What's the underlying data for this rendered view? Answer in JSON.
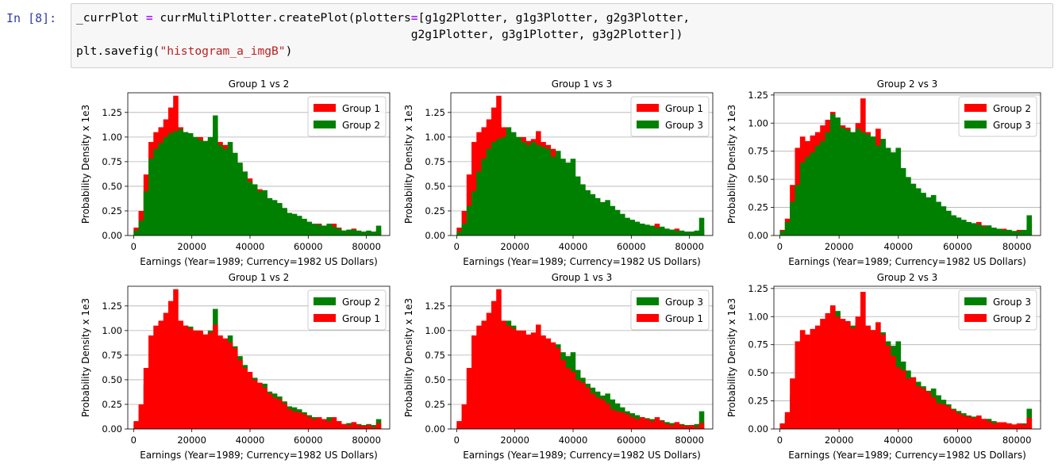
{
  "cell": {
    "prompt": "In [8]:",
    "line1": {
      "a": "_currPlot ",
      "eq": "=",
      "b": " currMultiPlotter.createPlot(plotters",
      "eq2": "=",
      "c": "[g1g2Plotter, g1g3Plotter, g2g3Plotter,"
    },
    "line2": "                                                g2g1Plotter, g3g1Plotter, g3g2Plotter])",
    "line3": {
      "a": "plt.savefig(",
      "str": "\"histogram_a_imgB\"",
      "b": ")"
    }
  },
  "colors": {
    "groupA": "#ff0000",
    "groupB": "#008000",
    "grid": "#b0b0b0"
  },
  "chart_data": [
    {
      "type": "bar",
      "title": "Group 1 vs 2",
      "xlabel": "Earnings (Year=1989; Currency=1982 US Dollars)",
      "ylabel": "Probability Density x 1e3",
      "xlim": [
        -2000,
        88000
      ],
      "ylim": [
        0,
        1.45
      ],
      "yticks": [
        "0.00",
        "0.25",
        "0.50",
        "0.75",
        "1.00",
        "1.25"
      ],
      "xticks": [
        "0",
        "20000",
        "40000",
        "60000",
        "80000"
      ],
      "grid": "horizontal",
      "legend": "upper right",
      "draw_order": [
        "Group 1",
        "Group 2"
      ],
      "legend_entries": [
        {
          "label": "Group 1",
          "color": "red"
        },
        {
          "label": "Group 2",
          "color": "green"
        }
      ],
      "bins": {
        "start": 0,
        "width": 1700,
        "count": 50
      },
      "series": [
        {
          "name": "Group 1",
          "values": [
            0.08,
            0.25,
            0.62,
            0.95,
            1.05,
            1.1,
            1.18,
            1.3,
            1.42,
            1.1,
            1.05,
            1.02,
            1.0,
            1.0,
            0.96,
            0.98,
            1.06,
            0.95,
            0.92,
            0.88,
            0.82,
            0.7,
            0.62,
            0.58,
            0.5,
            0.47,
            0.42,
            0.36,
            0.32,
            0.3,
            0.26,
            0.2,
            0.18,
            0.17,
            0.15,
            0.12,
            0.1,
            0.12,
            0.1,
            0.08,
            0.12,
            0.08,
            0.05,
            0.04,
            0.07,
            0.04,
            0.03,
            0.04,
            0.02,
            0.06
          ]
        },
        {
          "name": "Group 2",
          "values": [
            0.05,
            0.15,
            0.45,
            0.78,
            0.88,
            0.94,
            1.0,
            1.04,
            1.06,
            1.08,
            1.05,
            1.04,
            1.0,
            0.97,
            0.96,
            1.0,
            1.22,
            0.92,
            0.88,
            0.95,
            0.84,
            0.74,
            0.65,
            0.55,
            0.52,
            0.45,
            0.46,
            0.38,
            0.36,
            0.33,
            0.28,
            0.23,
            0.22,
            0.2,
            0.17,
            0.14,
            0.12,
            0.11,
            0.1,
            0.12,
            0.09,
            0.07,
            0.05,
            0.06,
            0.06,
            0.05,
            0.04,
            0.05,
            0.04,
            0.1
          ]
        }
      ]
    },
    {
      "type": "bar",
      "title": "Group 1 vs 3",
      "xlabel": "Earnings (Year=1989; Currency=1982 US Dollars)",
      "ylabel": "Probability Density x 1e3",
      "xlim": [
        -2000,
        88000
      ],
      "ylim": [
        0,
        1.45
      ],
      "yticks": [
        "0.00",
        "0.25",
        "0.50",
        "0.75",
        "1.00",
        "1.25"
      ],
      "xticks": [
        "0",
        "20000",
        "40000",
        "60000",
        "80000"
      ],
      "grid": "horizontal",
      "legend": "upper right",
      "draw_order": [
        "Group 1",
        "Group 3"
      ],
      "legend_entries": [
        {
          "label": "Group 1",
          "color": "red"
        },
        {
          "label": "Group 3",
          "color": "green"
        }
      ],
      "bins": {
        "start": 0,
        "width": 1700,
        "count": 50
      },
      "series": [
        {
          "name": "Group 1",
          "values": [
            0.08,
            0.25,
            0.62,
            0.95,
            1.05,
            1.1,
            1.18,
            1.3,
            1.42,
            1.1,
            1.05,
            1.02,
            1.0,
            1.0,
            0.96,
            0.98,
            1.06,
            0.95,
            0.92,
            0.88,
            0.82,
            0.7,
            0.62,
            0.58,
            0.5,
            0.47,
            0.42,
            0.36,
            0.32,
            0.3,
            0.26,
            0.2,
            0.18,
            0.17,
            0.15,
            0.12,
            0.1,
            0.12,
            0.1,
            0.08,
            0.12,
            0.08,
            0.05,
            0.04,
            0.07,
            0.04,
            0.03,
            0.04,
            0.02,
            0.06
          ]
        },
        {
          "name": "Group 3",
          "values": [
            0.04,
            0.12,
            0.3,
            0.45,
            0.65,
            0.78,
            0.88,
            0.95,
            0.98,
            1.0,
            1.1,
            1.05,
            1.0,
            0.95,
            0.92,
            0.95,
            0.92,
            0.9,
            0.88,
            0.8,
            0.86,
            0.78,
            0.74,
            0.78,
            0.6,
            0.52,
            0.46,
            0.42,
            0.38,
            0.34,
            0.36,
            0.3,
            0.26,
            0.22,
            0.18,
            0.16,
            0.14,
            0.12,
            0.11,
            0.1,
            0.08,
            0.09,
            0.07,
            0.06,
            0.05,
            0.05,
            0.04,
            0.04,
            0.05,
            0.18
          ]
        }
      ]
    },
    {
      "type": "bar",
      "title": "Group 2 vs 3",
      "xlabel": "Earnings (Year=1989; Currency=1982 US Dollars)",
      "ylabel": "Probability Density x 1e3",
      "xlim": [
        -2000,
        88000
      ],
      "ylim": [
        0,
        1.27
      ],
      "yticks": [
        "0.00",
        "0.25",
        "0.50",
        "0.75",
        "1.00",
        "1.25"
      ],
      "xticks": [
        "0",
        "20000",
        "40000",
        "60000",
        "80000"
      ],
      "grid": "horizontal",
      "legend": "upper right",
      "draw_order": [
        "Group 2",
        "Group 3"
      ],
      "legend_entries": [
        {
          "label": "Group 2",
          "color": "red"
        },
        {
          "label": "Group 3",
          "color": "green"
        }
      ],
      "bins": {
        "start": 0,
        "width": 1700,
        "count": 50
      },
      "series": [
        {
          "name": "Group 2",
          "values": [
            0.05,
            0.15,
            0.45,
            0.78,
            0.88,
            0.84,
            0.89,
            0.92,
            0.98,
            1.03,
            1.1,
            1.0,
            0.98,
            0.96,
            0.9,
            1.0,
            1.22,
            0.92,
            0.88,
            0.95,
            0.84,
            0.74,
            0.65,
            0.55,
            0.52,
            0.45,
            0.46,
            0.38,
            0.36,
            0.33,
            0.28,
            0.23,
            0.22,
            0.2,
            0.17,
            0.14,
            0.12,
            0.11,
            0.1,
            0.12,
            0.09,
            0.07,
            0.05,
            0.06,
            0.06,
            0.05,
            0.04,
            0.05,
            0.04,
            0.1
          ]
        },
        {
          "name": "Group 3",
          "values": [
            0.04,
            0.12,
            0.3,
            0.45,
            0.65,
            0.7,
            0.74,
            0.8,
            0.84,
            0.92,
            1.08,
            1.05,
            0.96,
            0.94,
            0.92,
            0.95,
            0.92,
            0.9,
            0.88,
            0.8,
            0.86,
            0.78,
            0.74,
            0.78,
            0.6,
            0.52,
            0.46,
            0.42,
            0.38,
            0.34,
            0.36,
            0.3,
            0.26,
            0.22,
            0.18,
            0.16,
            0.14,
            0.12,
            0.11,
            0.1,
            0.08,
            0.09,
            0.07,
            0.06,
            0.05,
            0.05,
            0.04,
            0.04,
            0.05,
            0.18
          ]
        }
      ]
    },
    {
      "type": "bar",
      "title": "Group 1 vs 2",
      "xlabel": "Earnings (Year=1989; Currency=1982 US Dollars)",
      "ylabel": "Probability Density x 1e3",
      "xlim": [
        -2000,
        88000
      ],
      "ylim": [
        0,
        1.45
      ],
      "yticks": [
        "0.00",
        "0.25",
        "0.50",
        "0.75",
        "1.00",
        "1.25"
      ],
      "xticks": [
        "0",
        "20000",
        "40000",
        "60000",
        "80000"
      ],
      "grid": "horizontal",
      "legend": "upper right",
      "draw_order": [
        "Group 2",
        "Group 1"
      ],
      "legend_entries": [
        {
          "label": "Group 2",
          "color": "green"
        },
        {
          "label": "Group 1",
          "color": "red"
        }
      ],
      "bins": {
        "start": 0,
        "width": 1700,
        "count": 50
      },
      "series": [
        {
          "name": "Group 1",
          "values": [
            0.08,
            0.25,
            0.62,
            0.95,
            1.05,
            1.1,
            1.18,
            1.3,
            1.42,
            1.1,
            1.05,
            1.02,
            1.0,
            1.0,
            0.96,
            0.98,
            1.06,
            0.95,
            0.92,
            0.88,
            0.82,
            0.7,
            0.62,
            0.58,
            0.5,
            0.47,
            0.42,
            0.36,
            0.32,
            0.3,
            0.26,
            0.2,
            0.18,
            0.17,
            0.15,
            0.12,
            0.1,
            0.12,
            0.1,
            0.08,
            0.12,
            0.08,
            0.05,
            0.04,
            0.07,
            0.04,
            0.03,
            0.04,
            0.02,
            0.06
          ]
        },
        {
          "name": "Group 2",
          "values": [
            0.05,
            0.15,
            0.45,
            0.78,
            0.88,
            0.94,
            1.0,
            1.04,
            1.06,
            1.08,
            1.05,
            1.04,
            1.0,
            0.97,
            0.96,
            1.0,
            1.22,
            0.92,
            0.88,
            0.95,
            0.84,
            0.74,
            0.65,
            0.55,
            0.52,
            0.45,
            0.46,
            0.38,
            0.36,
            0.33,
            0.28,
            0.23,
            0.22,
            0.2,
            0.17,
            0.14,
            0.12,
            0.11,
            0.1,
            0.12,
            0.09,
            0.07,
            0.05,
            0.06,
            0.06,
            0.05,
            0.04,
            0.05,
            0.04,
            0.1
          ]
        }
      ]
    },
    {
      "type": "bar",
      "title": "Group 1 vs 3",
      "xlabel": "Earnings (Year=1989; Currency=1982 US Dollars)",
      "ylabel": "Probability Density x 1e3",
      "xlim": [
        -2000,
        88000
      ],
      "ylim": [
        0,
        1.45
      ],
      "yticks": [
        "0.00",
        "0.25",
        "0.50",
        "0.75",
        "1.00",
        "1.25"
      ],
      "xticks": [
        "0",
        "20000",
        "40000",
        "60000",
        "80000"
      ],
      "grid": "horizontal",
      "legend": "upper right",
      "draw_order": [
        "Group 3",
        "Group 1"
      ],
      "legend_entries": [
        {
          "label": "Group 3",
          "color": "green"
        },
        {
          "label": "Group 1",
          "color": "red"
        }
      ],
      "bins": {
        "start": 0,
        "width": 1700,
        "count": 50
      },
      "series": [
        {
          "name": "Group 1",
          "values": [
            0.08,
            0.25,
            0.62,
            0.95,
            1.05,
            1.1,
            1.18,
            1.3,
            1.42,
            1.1,
            1.05,
            1.02,
            1.0,
            1.0,
            0.96,
            0.98,
            1.06,
            0.95,
            0.92,
            0.88,
            0.82,
            0.7,
            0.62,
            0.58,
            0.5,
            0.47,
            0.42,
            0.36,
            0.32,
            0.3,
            0.26,
            0.2,
            0.18,
            0.17,
            0.15,
            0.12,
            0.1,
            0.12,
            0.1,
            0.08,
            0.12,
            0.08,
            0.05,
            0.04,
            0.07,
            0.04,
            0.03,
            0.04,
            0.02,
            0.06
          ]
        },
        {
          "name": "Group 3",
          "values": [
            0.04,
            0.12,
            0.3,
            0.45,
            0.65,
            0.78,
            0.88,
            0.95,
            0.98,
            1.0,
            1.1,
            1.05,
            1.0,
            0.95,
            0.92,
            0.95,
            0.92,
            0.9,
            0.88,
            0.8,
            0.86,
            0.78,
            0.74,
            0.78,
            0.6,
            0.52,
            0.46,
            0.42,
            0.38,
            0.34,
            0.36,
            0.3,
            0.26,
            0.22,
            0.18,
            0.16,
            0.14,
            0.12,
            0.11,
            0.1,
            0.08,
            0.09,
            0.07,
            0.06,
            0.05,
            0.05,
            0.04,
            0.04,
            0.05,
            0.18
          ]
        }
      ]
    },
    {
      "type": "bar",
      "title": "Group 2 vs 3",
      "xlabel": "Earnings (Year=1989; Currency=1982 US Dollars)",
      "ylabel": "Probability Density x 1e3",
      "xlim": [
        -2000,
        88000
      ],
      "ylim": [
        0,
        1.27
      ],
      "yticks": [
        "0.00",
        "0.25",
        "0.50",
        "0.75",
        "1.00",
        "1.25"
      ],
      "xticks": [
        "0",
        "20000",
        "40000",
        "60000",
        "80000"
      ],
      "grid": "horizontal",
      "legend": "upper right",
      "draw_order": [
        "Group 3",
        "Group 2"
      ],
      "legend_entries": [
        {
          "label": "Group 3",
          "color": "green"
        },
        {
          "label": "Group 2",
          "color": "red"
        }
      ],
      "bins": {
        "start": 0,
        "width": 1700,
        "count": 50
      },
      "series": [
        {
          "name": "Group 2",
          "values": [
            0.05,
            0.15,
            0.45,
            0.78,
            0.88,
            0.84,
            0.89,
            0.92,
            0.98,
            1.03,
            1.1,
            1.0,
            0.98,
            0.96,
            0.9,
            1.0,
            1.22,
            0.92,
            0.88,
            0.95,
            0.84,
            0.74,
            0.65,
            0.55,
            0.52,
            0.45,
            0.46,
            0.38,
            0.36,
            0.33,
            0.28,
            0.23,
            0.22,
            0.2,
            0.17,
            0.14,
            0.12,
            0.11,
            0.1,
            0.12,
            0.09,
            0.07,
            0.05,
            0.06,
            0.06,
            0.05,
            0.04,
            0.05,
            0.04,
            0.1
          ]
        },
        {
          "name": "Group 3",
          "values": [
            0.04,
            0.12,
            0.3,
            0.45,
            0.65,
            0.7,
            0.74,
            0.8,
            0.84,
            0.92,
            1.08,
            1.05,
            0.96,
            0.94,
            0.92,
            0.95,
            0.92,
            0.9,
            0.88,
            0.8,
            0.86,
            0.78,
            0.74,
            0.78,
            0.6,
            0.52,
            0.46,
            0.42,
            0.38,
            0.34,
            0.36,
            0.3,
            0.26,
            0.22,
            0.18,
            0.16,
            0.14,
            0.12,
            0.11,
            0.1,
            0.08,
            0.09,
            0.07,
            0.06,
            0.05,
            0.05,
            0.04,
            0.04,
            0.05,
            0.18
          ]
        }
      ]
    }
  ]
}
